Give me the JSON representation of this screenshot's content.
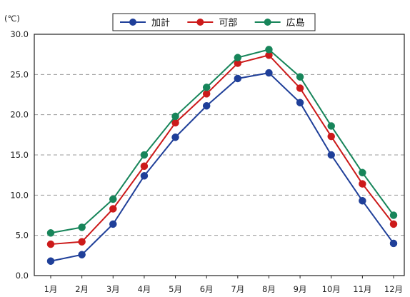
{
  "chart_data": {
    "type": "line",
    "unit_label": "(℃)",
    "categories": [
      "1月",
      "2月",
      "3月",
      "4月",
      "5月",
      "6月",
      "7月",
      "8月",
      "9月",
      "10月",
      "11月",
      "12月"
    ],
    "series": [
      {
        "name": "加計",
        "color": "#1f3f99",
        "values": [
          1.8,
          2.6,
          6.4,
          12.4,
          17.2,
          21.1,
          24.5,
          25.2,
          21.5,
          15.0,
          9.3,
          4.0
        ]
      },
      {
        "name": "可部",
        "color": "#cc1a1a",
        "values": [
          3.9,
          4.2,
          8.3,
          13.6,
          19.0,
          22.6,
          26.4,
          27.4,
          23.3,
          17.3,
          11.4,
          6.4
        ]
      },
      {
        "name": "広島",
        "color": "#17855a",
        "values": [
          5.3,
          6.0,
          9.5,
          15.0,
          19.8,
          23.4,
          27.1,
          28.1,
          24.7,
          18.6,
          12.8,
          7.5
        ]
      }
    ],
    "yticks": [
      "0.0",
      "5.0",
      "10.0",
      "15.0",
      "20.0",
      "25.0",
      "30.0"
    ],
    "ylim": [
      0,
      30
    ],
    "grid": "horizontal dashed",
    "legend_position": "top-center"
  }
}
